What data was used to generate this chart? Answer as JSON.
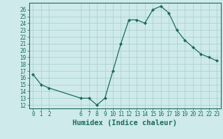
{
  "x": [
    0,
    1,
    2,
    6,
    7,
    8,
    9,
    10,
    11,
    12,
    13,
    14,
    15,
    16,
    17,
    18,
    19,
    20,
    21,
    22,
    23
  ],
  "y": [
    16.5,
    15.0,
    14.5,
    13.0,
    13.0,
    12.0,
    13.0,
    17.0,
    21.0,
    24.5,
    24.5,
    24.0,
    26.0,
    26.5,
    25.5,
    23.0,
    21.5,
    20.5,
    19.5,
    19.0,
    18.5
  ],
  "xlabel": "Humidex (Indice chaleur)",
  "xticks": [
    0,
    1,
    2,
    6,
    7,
    8,
    9,
    10,
    11,
    12,
    13,
    14,
    15,
    16,
    17,
    18,
    19,
    20,
    21,
    22,
    23
  ],
  "yticks": [
    12,
    13,
    14,
    15,
    16,
    17,
    18,
    19,
    20,
    21,
    22,
    23,
    24,
    25,
    26
  ],
  "ylim": [
    11.5,
    27.0
  ],
  "xlim": [
    -0.5,
    23.5
  ],
  "bg_color": "#ceeaea",
  "line_color": "#1a6b5a",
  "grid_color": "#aacccc",
  "xlabel_fontsize": 7.5,
  "tick_fontsize": 5.5
}
